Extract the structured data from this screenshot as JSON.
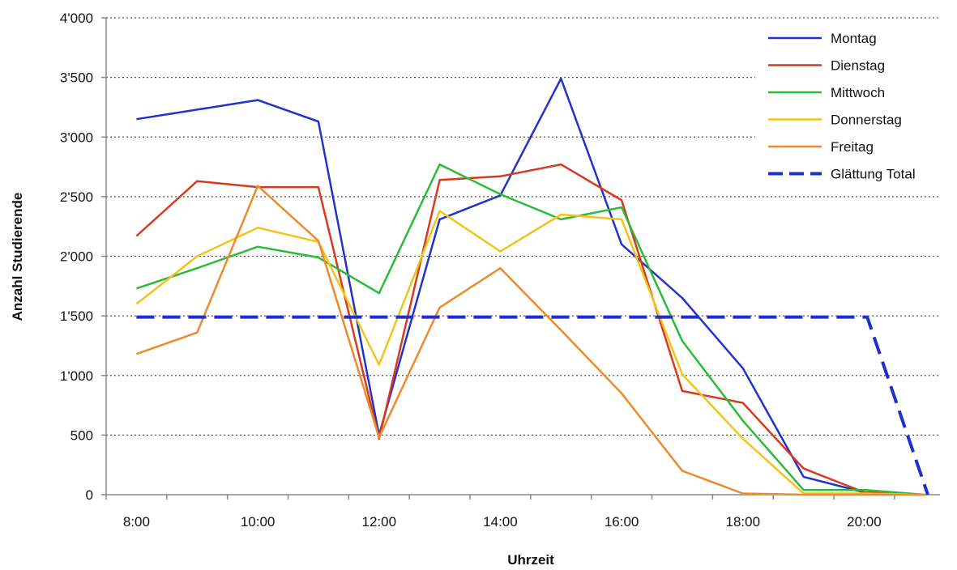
{
  "chart_data": {
    "type": "line",
    "title": "",
    "xlabel": "Uhrzeit",
    "ylabel": "Anzahl Studierende",
    "x": [
      8,
      9,
      10,
      11,
      12,
      13,
      14,
      15,
      16,
      17,
      18,
      19,
      20,
      21
    ],
    "xticks": [
      {
        "value": 8,
        "label": "8:00"
      },
      {
        "value": 10,
        "label": "10:00"
      },
      {
        "value": 12,
        "label": "12:00"
      },
      {
        "value": 14,
        "label": "14:00"
      },
      {
        "value": 16,
        "label": "16:00"
      },
      {
        "value": 18,
        "label": "18:00"
      },
      {
        "value": 20,
        "label": "20:00"
      }
    ],
    "ylim": [
      0,
      4000
    ],
    "yticks": [
      {
        "value": 0,
        "label": "0"
      },
      {
        "value": 500,
        "label": "500"
      },
      {
        "value": 1000,
        "label": "1'000"
      },
      {
        "value": 1500,
        "label": "1'500"
      },
      {
        "value": 2000,
        "label": "2'000"
      },
      {
        "value": 2500,
        "label": "2'500"
      },
      {
        "value": 3000,
        "label": "3'000"
      },
      {
        "value": 3500,
        "label": "3'500"
      },
      {
        "value": 4000,
        "label": "4'000"
      }
    ],
    "grid": "horizontal dotted",
    "legend_position": "top-right",
    "series": [
      {
        "name": "Montag",
        "color": "#2233cc",
        "dash": "solid",
        "x": [
          8,
          9,
          10,
          11,
          12,
          13,
          14,
          15,
          16,
          17,
          18,
          19,
          20,
          21
        ],
        "values": [
          3150,
          3230,
          3310,
          3130,
          500,
          2310,
          2510,
          3490,
          2100,
          1650,
          1060,
          150,
          20,
          0
        ]
      },
      {
        "name": "Dienstag",
        "color": "#d93a1f",
        "dash": "solid",
        "x": [
          8,
          9,
          10,
          11,
          12,
          13,
          14,
          15,
          16,
          17,
          18,
          19,
          20,
          21
        ],
        "values": [
          2170,
          2630,
          2580,
          2580,
          470,
          2640,
          2670,
          2770,
          2470,
          870,
          770,
          220,
          20,
          0
        ]
      },
      {
        "name": "Mittwoch",
        "color": "#2bbb36",
        "dash": "solid",
        "x": [
          8,
          9,
          10,
          11,
          12,
          13,
          14,
          15,
          16,
          17,
          18,
          19,
          20,
          21
        ],
        "values": [
          1730,
          1900,
          2080,
          1990,
          1690,
          2770,
          2520,
          2310,
          2410,
          1290,
          620,
          40,
          40,
          0
        ]
      },
      {
        "name": "Donnerstag",
        "color": "#f2c418",
        "dash": "solid",
        "x": [
          8,
          9,
          10,
          11,
          12,
          13,
          14,
          15,
          16,
          17,
          18,
          19,
          20,
          21
        ],
        "values": [
          1600,
          2000,
          2240,
          2120,
          1090,
          2380,
          2040,
          2350,
          2310,
          1010,
          470,
          10,
          10,
          0
        ]
      },
      {
        "name": "Freitag",
        "color": "#ef8a2c",
        "dash": "solid",
        "x": [
          8,
          9,
          10,
          11,
          12,
          13,
          14,
          15,
          16,
          17,
          18,
          19,
          20,
          21
        ],
        "values": [
          1180,
          1360,
          2590,
          2130,
          480,
          1570,
          1900,
          1380,
          850,
          200,
          10,
          0,
          0,
          0
        ]
      },
      {
        "name": "Glättung Total",
        "color": "#1f2fcc",
        "dash": "dashed",
        "x": [
          8,
          20.05,
          21.05
        ],
        "values": [
          1490,
          1490,
          0
        ]
      }
    ]
  }
}
